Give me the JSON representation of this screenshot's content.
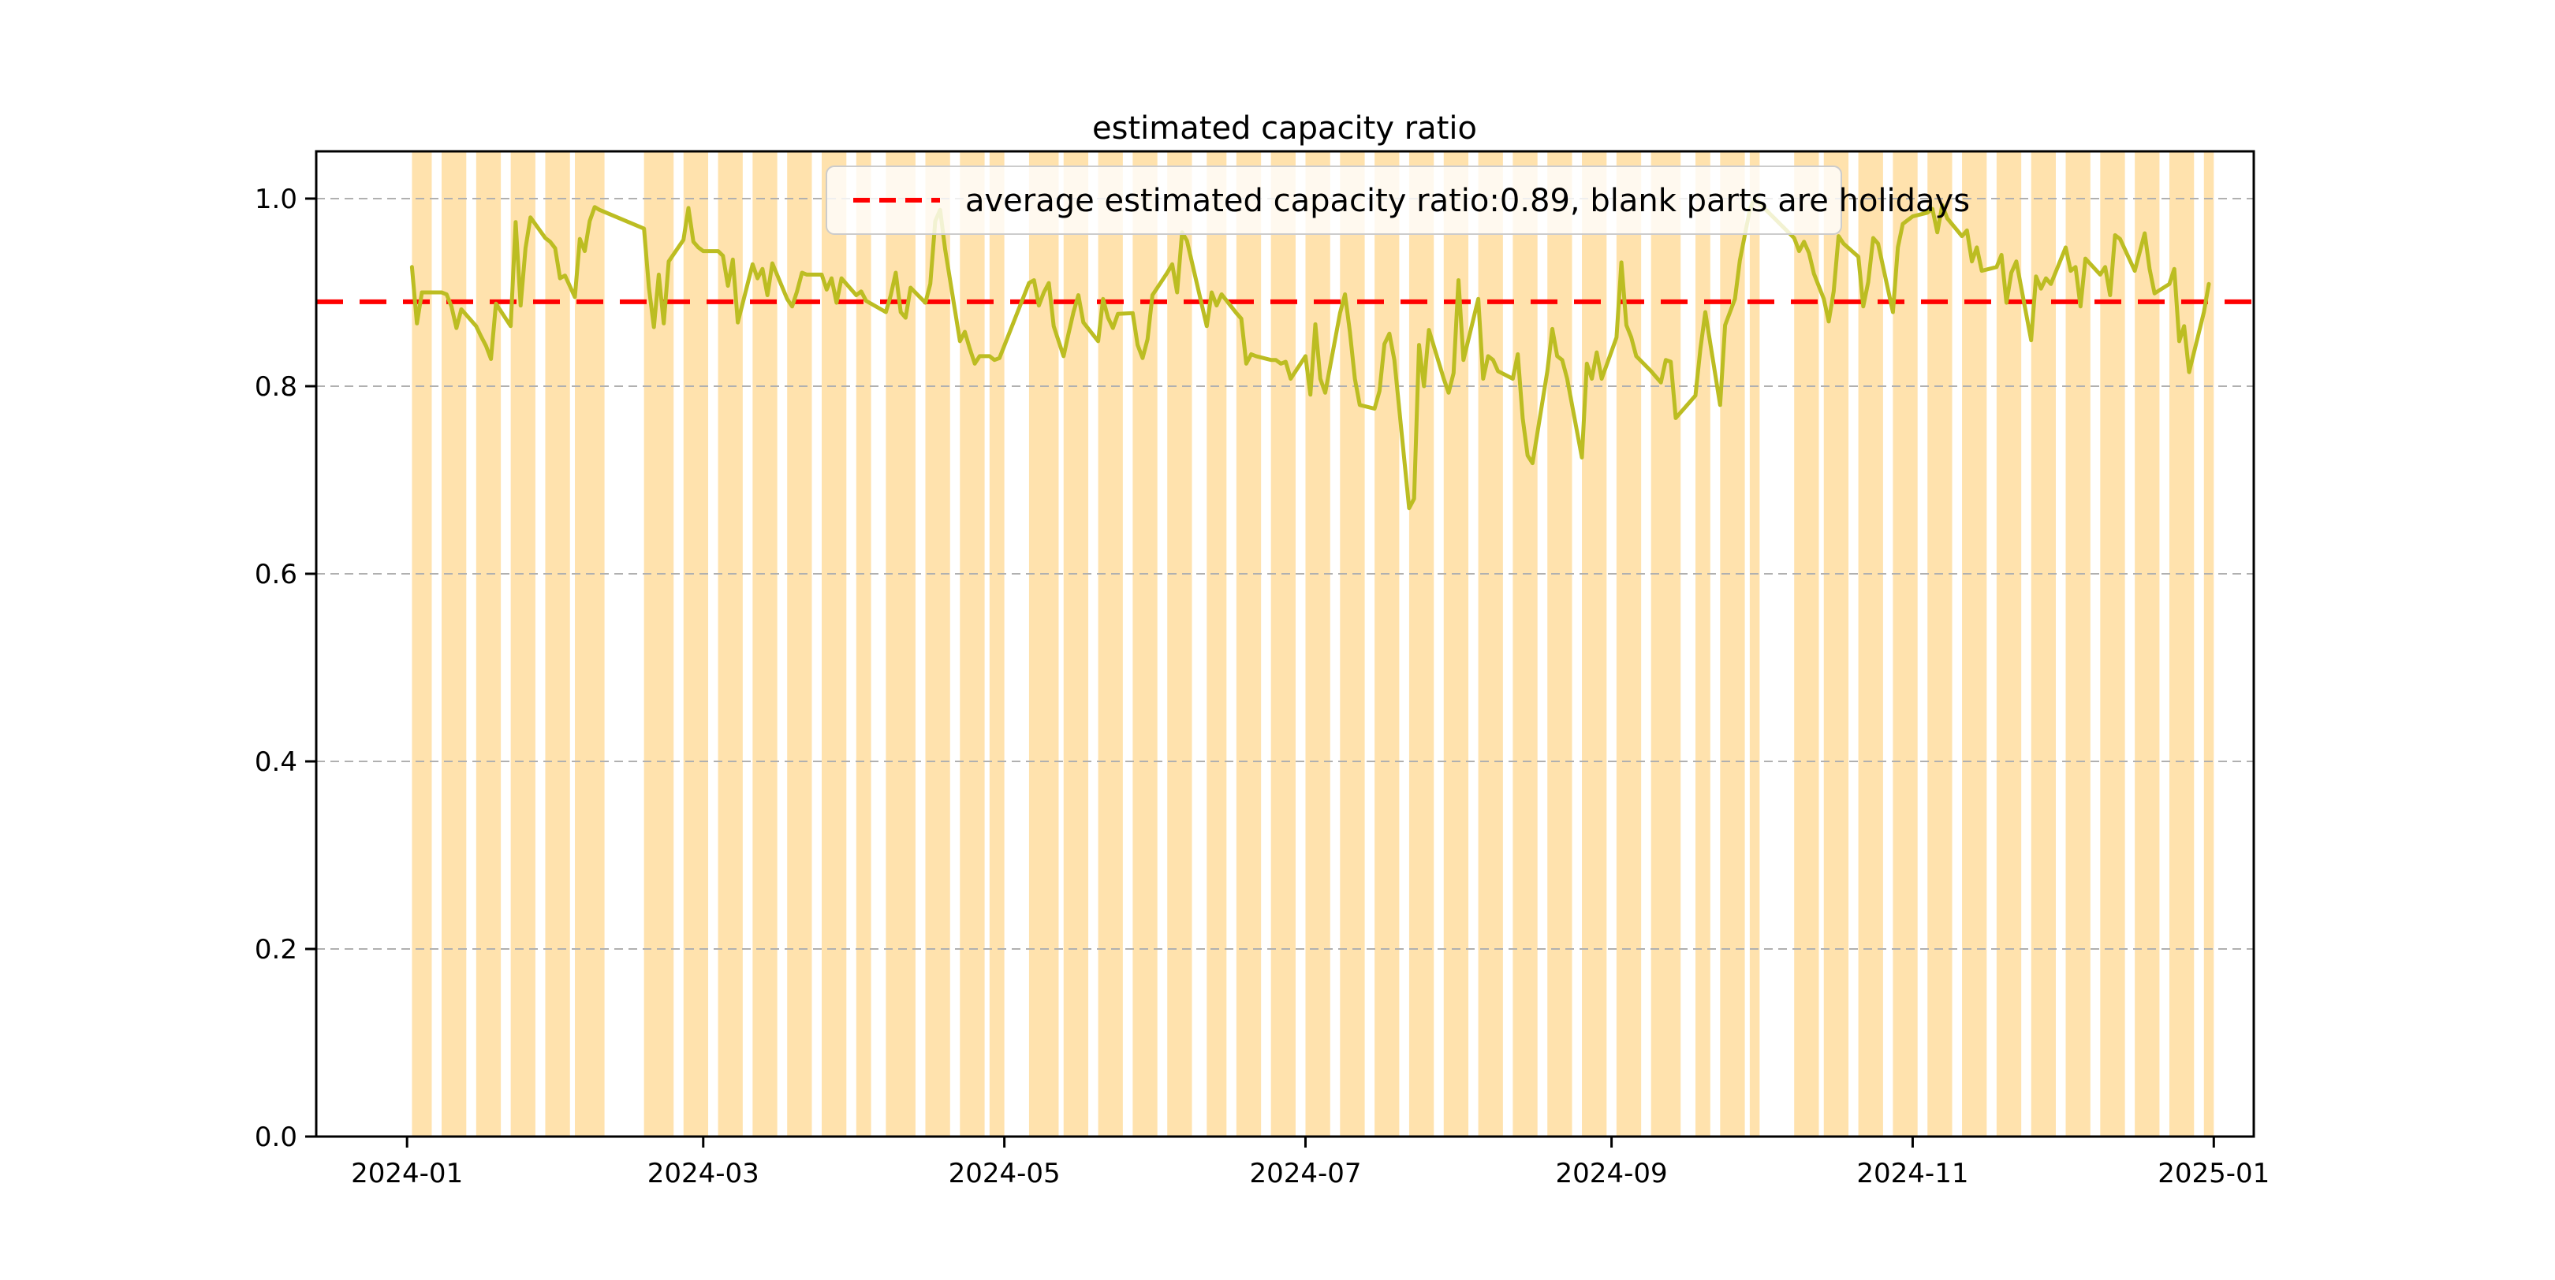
{
  "figure": {
    "background": "#ffffff",
    "title": "estimated capacity ratio"
  },
  "chart_data": {
    "type": "line",
    "title": "estimated capacity ratio",
    "legend": {
      "label": "average estimated capacity ratio:0.89, blank parts are holidays",
      "position": "upper center",
      "marker": "red-dashed-line"
    },
    "average_line": {
      "value": 0.89,
      "color": "#ff0000",
      "style": "dashed"
    },
    "line_color": "#bcbd22",
    "span_color": "#ffa500",
    "span_opacity": 0.32,
    "grid": true,
    "grid_color": "#b0b0b0",
    "ylim": [
      0.0,
      1.0504
    ],
    "yticks": [
      0.0,
      0.2,
      0.4,
      0.6,
      0.8,
      1.0
    ],
    "ytick_labels": [
      "0.0",
      "0.2",
      "0.4",
      "0.6",
      "0.8",
      "1.0"
    ],
    "x_epoch": "2024-01-01",
    "xlim_days": [
      -18.4,
      374.1
    ],
    "xticks": [
      {
        "label": "2024-01",
        "day": 0
      },
      {
        "label": "2024-03",
        "day": 60
      },
      {
        "label": "2024-05",
        "day": 121
      },
      {
        "label": "2024-07",
        "day": 182
      },
      {
        "label": "2024-09",
        "day": 244
      },
      {
        "label": "2024-11",
        "day": 305
      },
      {
        "label": "2025-01",
        "day": 366
      }
    ],
    "note": "blank parts are holidays; shaded spans are working periods; one value per working day",
    "work_periods": [
      {
        "start_date": "2024-01-02",
        "end_date": "2024-01-05",
        "start_day": 1,
        "values": [
          0.927,
          0.867,
          0.9,
          0.9
        ]
      },
      {
        "start_date": "2024-01-08",
        "end_date": "2024-01-12",
        "start_day": 7,
        "values": [
          0.9,
          0.898,
          0.885,
          0.862,
          0.882
        ]
      },
      {
        "start_date": "2024-01-15",
        "end_date": "2024-01-19",
        "start_day": 14,
        "values": [
          0.864,
          0.853,
          0.843,
          0.829,
          0.888
        ]
      },
      {
        "start_date": "2024-01-22",
        "end_date": "2024-01-26",
        "start_day": 21,
        "values": [
          0.864,
          0.975,
          0.886,
          0.947,
          0.98
        ]
      },
      {
        "start_date": "2024-01-29",
        "end_date": "2024-02-02",
        "start_day": 28,
        "values": [
          0.958,
          0.954,
          0.947,
          0.915,
          0.918
        ]
      },
      {
        "start_date": "2024-02-04",
        "end_date": "2024-02-09",
        "start_day": 34,
        "values": [
          0.895,
          0.957,
          0.944,
          0.976,
          0.991,
          0.988
        ]
      },
      {
        "start_date": "2024-02-18",
        "end_date": "2024-02-23",
        "start_day": 48,
        "values": [
          0.968,
          0.905,
          0.863,
          0.919,
          0.867,
          0.933
        ]
      },
      {
        "start_date": "2024-02-26",
        "end_date": "2024-03-01",
        "start_day": 56,
        "values": [
          0.956,
          0.99,
          0.954,
          0.948,
          0.944
        ]
      },
      {
        "start_date": "2024-03-04",
        "end_date": "2024-03-08",
        "start_day": 63,
        "values": [
          0.944,
          0.939,
          0.907,
          0.935,
          0.868
        ]
      },
      {
        "start_date": "2024-03-11",
        "end_date": "2024-03-15",
        "start_day": 70,
        "values": [
          0.93,
          0.915,
          0.925,
          0.897,
          0.931
        ]
      },
      {
        "start_date": "2024-03-18",
        "end_date": "2024-03-22",
        "start_day": 77,
        "values": [
          0.893,
          0.885,
          0.901,
          0.921,
          0.919
        ]
      },
      {
        "start_date": "2024-03-25",
        "end_date": "2024-03-29",
        "start_day": 84,
        "values": [
          0.919,
          0.903,
          0.915,
          0.889,
          0.915
        ]
      },
      {
        "start_date": "2024-04-01",
        "end_date": "2024-04-03",
        "start_day": 91,
        "values": [
          0.897,
          0.901,
          0.891
        ]
      },
      {
        "start_date": "2024-04-07",
        "end_date": "2024-04-12",
        "start_day": 97,
        "values": [
          0.879,
          0.897,
          0.921,
          0.879,
          0.873,
          0.905
        ]
      },
      {
        "start_date": "2024-04-15",
        "end_date": "2024-04-19",
        "start_day": 105,
        "values": [
          0.889,
          0.909,
          0.976,
          0.988,
          0.946
        ]
      },
      {
        "start_date": "2024-04-22",
        "end_date": "2024-04-26",
        "start_day": 112,
        "values": [
          0.848,
          0.858,
          0.84,
          0.824,
          0.832
        ]
      },
      {
        "start_date": "2024-04-28",
        "end_date": "2024-04-30",
        "start_day": 118,
        "values": [
          0.832,
          0.828,
          0.83
        ]
      },
      {
        "start_date": "2024-05-06",
        "end_date": "2024-05-11",
        "start_day": 126,
        "values": [
          0.91,
          0.913,
          0.886,
          0.9,
          0.91,
          0.864
        ]
      },
      {
        "start_date": "2024-05-13",
        "end_date": "2024-05-17",
        "start_day": 133,
        "values": [
          0.832,
          0.856,
          0.879,
          0.897,
          0.868
        ]
      },
      {
        "start_date": "2024-05-20",
        "end_date": "2024-05-24",
        "start_day": 140,
        "values": [
          0.848,
          0.893,
          0.873,
          0.862,
          0.877
        ]
      },
      {
        "start_date": "2024-05-27",
        "end_date": "2024-05-31",
        "start_day": 147,
        "values": [
          0.878,
          0.844,
          0.83,
          0.85,
          0.897
        ]
      },
      {
        "start_date": "2024-06-03",
        "end_date": "2024-06-07",
        "start_day": 154,
        "values": [
          0.921,
          0.93,
          0.9,
          0.964,
          0.955
        ]
      },
      {
        "start_date": "2024-06-11",
        "end_date": "2024-06-14",
        "start_day": 162,
        "values": [
          0.864,
          0.9,
          0.886,
          0.898
        ]
      },
      {
        "start_date": "2024-06-17",
        "end_date": "2024-06-21",
        "start_day": 168,
        "values": [
          0.878,
          0.872,
          0.824,
          0.834,
          0.832
        ]
      },
      {
        "start_date": "2024-06-24",
        "end_date": "2024-06-28",
        "start_day": 175,
        "values": [
          0.828,
          0.828,
          0.824,
          0.826,
          0.808
        ]
      },
      {
        "start_date": "2024-07-01",
        "end_date": "2024-07-05",
        "start_day": 182,
        "values": [
          0.832,
          0.791,
          0.866,
          0.808,
          0.793
        ]
      },
      {
        "start_date": "2024-07-08",
        "end_date": "2024-07-12",
        "start_day": 189,
        "values": [
          0.878,
          0.898,
          0.858,
          0.808,
          0.78
        ]
      },
      {
        "start_date": "2024-07-15",
        "end_date": "2024-07-19",
        "start_day": 196,
        "values": [
          0.776,
          0.795,
          0.845,
          0.856,
          0.828
        ]
      },
      {
        "start_date": "2024-07-22",
        "end_date": "2024-07-26",
        "start_day": 203,
        "values": [
          0.67,
          0.68,
          0.844,
          0.8,
          0.86
        ]
      },
      {
        "start_date": "2024-07-29",
        "end_date": "2024-08-02",
        "start_day": 210,
        "values": [
          0.808,
          0.793,
          0.814,
          0.913,
          0.828
        ]
      },
      {
        "start_date": "2024-08-05",
        "end_date": "2024-08-09",
        "start_day": 217,
        "values": [
          0.893,
          0.808,
          0.832,
          0.828,
          0.816
        ]
      },
      {
        "start_date": "2024-08-12",
        "end_date": "2024-08-16",
        "start_day": 224,
        "values": [
          0.808,
          0.834,
          0.766,
          0.726,
          0.718
        ]
      },
      {
        "start_date": "2024-08-19",
        "end_date": "2024-08-23",
        "start_day": 231,
        "values": [
          0.816,
          0.861,
          0.832,
          0.828,
          0.808
        ]
      },
      {
        "start_date": "2024-08-26",
        "end_date": "2024-08-30",
        "start_day": 238,
        "values": [
          0.724,
          0.824,
          0.808,
          0.836,
          0.808
        ]
      },
      {
        "start_date": "2024-09-02",
        "end_date": "2024-09-06",
        "start_day": 245,
        "values": [
          0.852,
          0.932,
          0.865,
          0.852,
          0.832
        ]
      },
      {
        "start_date": "2024-09-09",
        "end_date": "2024-09-14",
        "start_day": 252,
        "values": [
          0.816,
          0.81,
          0.804,
          0.828,
          0.826,
          0.766
        ]
      },
      {
        "start_date": "2024-09-18",
        "end_date": "2024-09-20",
        "start_day": 261,
        "values": [
          0.79,
          0.84,
          0.879
        ]
      },
      {
        "start_date": "2024-09-23",
        "end_date": "2024-09-27",
        "start_day": 266,
        "values": [
          0.78,
          0.865,
          0.879,
          0.893,
          0.934
        ]
      },
      {
        "start_date": "2024-09-29",
        "end_date": "2024-09-30",
        "start_day": 272,
        "values": [
          0.988,
          1.0
        ]
      },
      {
        "start_date": "2024-10-08",
        "end_date": "2024-10-12",
        "start_day": 281,
        "values": [
          0.958,
          0.944,
          0.954,
          0.942,
          0.92
        ]
      },
      {
        "start_date": "2024-10-14",
        "end_date": "2024-10-18",
        "start_day": 287,
        "values": [
          0.893,
          0.869,
          0.901,
          0.96,
          0.952
        ]
      },
      {
        "start_date": "2024-10-21",
        "end_date": "2024-10-25",
        "start_day": 294,
        "values": [
          0.938,
          0.885,
          0.911,
          0.958,
          0.952
        ]
      },
      {
        "start_date": "2024-10-28",
        "end_date": "2024-11-01",
        "start_day": 301,
        "values": [
          0.879,
          0.948,
          0.973,
          0.977,
          0.981
        ]
      },
      {
        "start_date": "2024-11-04",
        "end_date": "2024-11-08",
        "start_day": 308,
        "values": [
          0.985,
          0.989,
          0.964,
          0.993,
          0.979
        ]
      },
      {
        "start_date": "2024-11-11",
        "end_date": "2024-11-15",
        "start_day": 315,
        "values": [
          0.96,
          0.966,
          0.933,
          0.948,
          0.923
        ]
      },
      {
        "start_date": "2024-11-18",
        "end_date": "2024-11-22",
        "start_day": 322,
        "values": [
          0.927,
          0.94,
          0.889,
          0.921,
          0.933
        ]
      },
      {
        "start_date": "2024-11-25",
        "end_date": "2024-11-29",
        "start_day": 329,
        "values": [
          0.849,
          0.917,
          0.904,
          0.915,
          0.909
        ]
      },
      {
        "start_date": "2024-12-02",
        "end_date": "2024-12-06",
        "start_day": 336,
        "values": [
          0.948,
          0.923,
          0.927,
          0.885,
          0.936
        ]
      },
      {
        "start_date": "2024-12-09",
        "end_date": "2024-12-13",
        "start_day": 343,
        "values": [
          0.919,
          0.927,
          0.897,
          0.961,
          0.957
        ]
      },
      {
        "start_date": "2024-12-16",
        "end_date": "2024-12-20",
        "start_day": 350,
        "values": [
          0.923,
          0.943,
          0.963,
          0.925,
          0.899
        ]
      },
      {
        "start_date": "2024-12-23",
        "end_date": "2024-12-27",
        "start_day": 357,
        "values": [
          0.909,
          0.925,
          0.848,
          0.864,
          0.815
        ]
      },
      {
        "start_date": "2024-12-30",
        "end_date": "2024-12-31",
        "start_day": 364,
        "values": [
          0.879,
          0.909
        ]
      }
    ]
  },
  "layout_values": {
    "spine_color": "#000000",
    "tick_color": "#000000"
  }
}
